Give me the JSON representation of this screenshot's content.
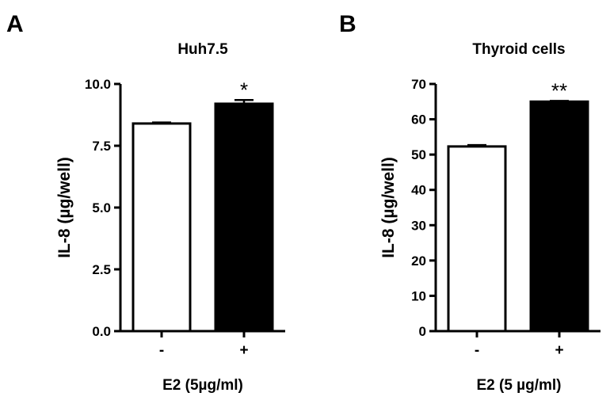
{
  "chart_data": [
    {
      "type": "bar",
      "panel": "A",
      "title": "Huh7.5",
      "ylabel": "IL-8 (µg/well)",
      "xlabel": "E2 (5µg/ml)",
      "categories": [
        "-",
        "+"
      ],
      "values": [
        8.4,
        9.2
      ],
      "errors": [
        0.04,
        0.15
      ],
      "bar_colors": [
        "#ffffff",
        "#000000"
      ],
      "significance": [
        "",
        "*"
      ],
      "ylim": [
        0,
        10
      ],
      "yticks": [
        "0.0",
        "2.5",
        "5.0",
        "7.5",
        "10.0"
      ],
      "grid": false
    },
    {
      "type": "bar",
      "panel": "B",
      "title": "Thyroid cells",
      "ylabel": "IL-8 (µg/well)",
      "xlabel": "E2 (5 µg/ml)",
      "categories": [
        "-",
        "+"
      ],
      "values": [
        52.3,
        65.0
      ],
      "errors": [
        0.4,
        0.2
      ],
      "bar_colors": [
        "#ffffff",
        "#000000"
      ],
      "significance": [
        "",
        "**"
      ],
      "ylim": [
        0,
        70
      ],
      "yticks": [
        "0",
        "10",
        "20",
        "30",
        "40",
        "50",
        "60",
        "70"
      ],
      "grid": false
    }
  ]
}
